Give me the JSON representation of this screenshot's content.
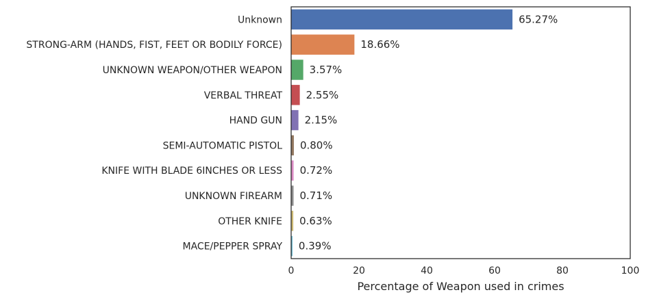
{
  "chart_data": {
    "type": "bar",
    "orientation": "horizontal",
    "categories": [
      "Unknown",
      "STRONG-ARM (HANDS, FIST, FEET OR BODILY FORCE)",
      "UNKNOWN WEAPON/OTHER WEAPON",
      "VERBAL THREAT",
      "HAND GUN",
      "SEMI-AUTOMATIC PISTOL",
      "KNIFE WITH BLADE 6INCHES OR LESS",
      "UNKNOWN FIREARM",
      "OTHER KNIFE",
      "MACE/PEPPER SPRAY"
    ],
    "values": [
      65.27,
      18.66,
      3.57,
      2.55,
      2.15,
      0.8,
      0.72,
      0.71,
      0.63,
      0.39
    ],
    "value_labels": [
      "65.27%",
      "18.66%",
      "3.57%",
      "2.55%",
      "2.15%",
      "0.80%",
      "0.72%",
      "0.71%",
      "0.63%",
      "0.39%"
    ],
    "colors": [
      "#4c72b0",
      "#dd8452",
      "#55a868",
      "#c44e52",
      "#8172b3",
      "#937860",
      "#da8bc3",
      "#8c8c8c",
      "#ccb974",
      "#64b5cd"
    ],
    "title": "",
    "xlabel": "Percentage of Weapon used in crimes",
    "ylabel": "",
    "xlim": [
      0,
      100
    ],
    "xticks": [
      0,
      20,
      40,
      60,
      80,
      100
    ],
    "xtick_labels": [
      "0",
      "20",
      "40",
      "60",
      "80",
      "100"
    ],
    "grid": false,
    "legend": false
  }
}
